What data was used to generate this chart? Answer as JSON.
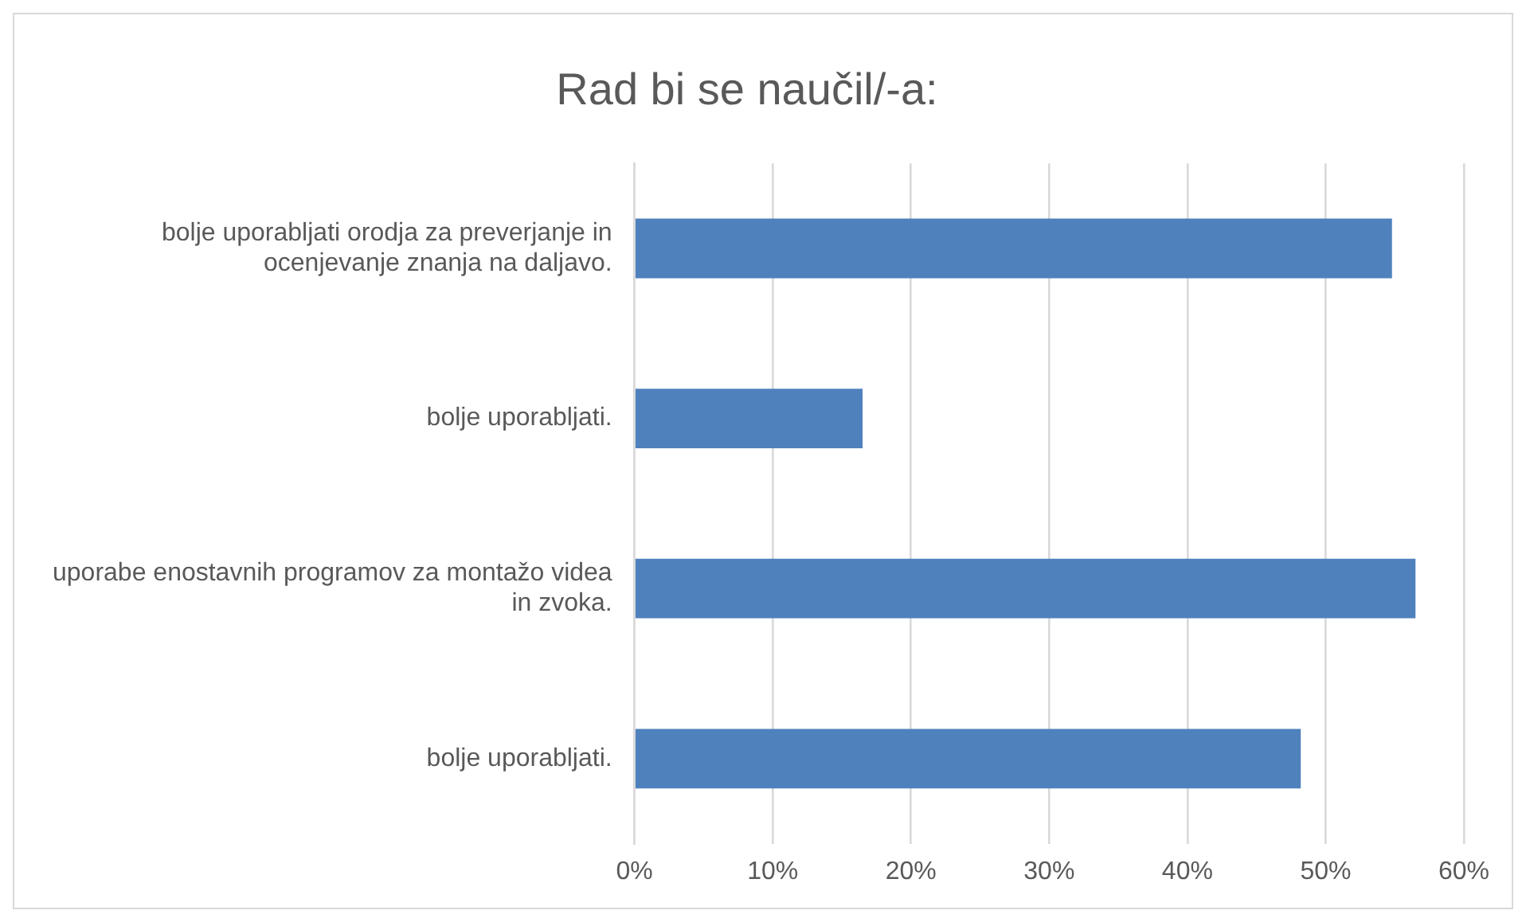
{
  "chart_data": {
    "type": "bar",
    "orientation": "horizontal",
    "title": "Rad bi se naučil/-a:",
    "categories": [
      "bolje uporabljati orodja za preverjanje in ocenjevanje znanja na daljavo.",
      "bolje uporabljati.",
      "uporabe enostavnih programov za montažo videa in zvoka.",
      "bolje uporabljati."
    ],
    "values": [
      54.8,
      16.5,
      56.5,
      48.2
    ],
    "color": "#4f81bd",
    "xlim": [
      0,
      60
    ],
    "xticks": [
      {
        "value": 0,
        "label": "0%"
      },
      {
        "value": 10,
        "label": "10%"
      },
      {
        "value": 20,
        "label": "20%"
      },
      {
        "value": 30,
        "label": "30%"
      },
      {
        "value": 40,
        "label": "40%"
      },
      {
        "value": 50,
        "label": "50%"
      },
      {
        "value": 60,
        "label": "60%"
      }
    ],
    "grid": "x",
    "legend": false
  }
}
